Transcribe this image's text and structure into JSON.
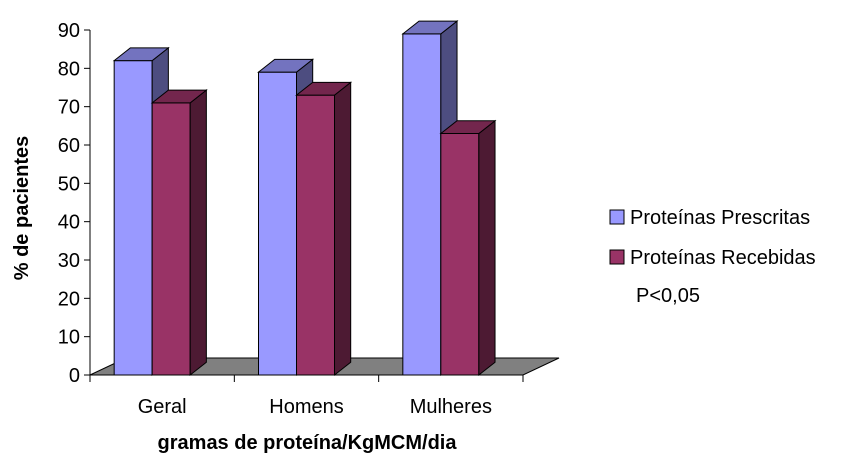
{
  "chart_data": {
    "type": "bar",
    "categories": [
      "Geral",
      "Homens",
      "Mulheres"
    ],
    "series": [
      {
        "name": "Proteínas Prescritas",
        "values": [
          82,
          79,
          89
        ],
        "color": "#9999ff",
        "side_color": "#4d4d80",
        "top_color": "#7373bf"
      },
      {
        "name": "Proteínas Recebidas",
        "values": [
          71,
          73,
          63
        ],
        "color": "#993366",
        "side_color": "#4d1a33",
        "top_color": "#73264d"
      }
    ],
    "xlabel": "gramas de proteína/KgMCM/dia",
    "ylabel": "% de pacientes",
    "ylim": [
      0,
      90
    ],
    "yticks": [
      0,
      10,
      20,
      30,
      40,
      50,
      60,
      70,
      80,
      90
    ],
    "annotation": "P<0,05",
    "floor_color": "#808080",
    "legend_position": "right",
    "grid": false
  }
}
